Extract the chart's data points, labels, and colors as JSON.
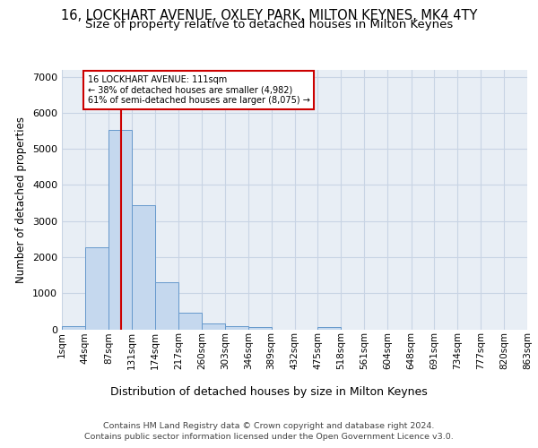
{
  "title_line1": "16, LOCKHART AVENUE, OXLEY PARK, MILTON KEYNES, MK4 4TY",
  "title_line2": "Size of property relative to detached houses in Milton Keynes",
  "xlabel": "Distribution of detached houses by size in Milton Keynes",
  "ylabel": "Number of detached properties",
  "footer_line1": "Contains HM Land Registry data © Crown copyright and database right 2024.",
  "footer_line2": "Contains public sector information licensed under the Open Government Licence v3.0.",
  "bin_edges": [
    1,
    44,
    87,
    131,
    174,
    217,
    260,
    303,
    346,
    389,
    432,
    475,
    518,
    561,
    604,
    648,
    691,
    734,
    777,
    820,
    863
  ],
  "bar_heights": [
    75,
    2270,
    5520,
    3430,
    1300,
    470,
    160,
    85,
    70,
    0,
    0,
    70,
    0,
    0,
    0,
    0,
    0,
    0,
    0,
    0
  ],
  "bar_fill_color": "#c5d8ee",
  "bar_edge_color": "#6699cc",
  "grid_color": "#c8d4e4",
  "bg_color": "#e8eef5",
  "property_sqm": 111,
  "red_line_color": "#cc0000",
  "annotation_line1": "16 LOCKHART AVENUE: 111sqm",
  "annotation_line2": "← 38% of detached houses are smaller (4,982)",
  "annotation_line3": "61% of semi-detached houses are larger (8,075) →",
  "ylim_max": 7200,
  "yticks": [
    0,
    1000,
    2000,
    3000,
    4000,
    5000,
    6000,
    7000
  ]
}
